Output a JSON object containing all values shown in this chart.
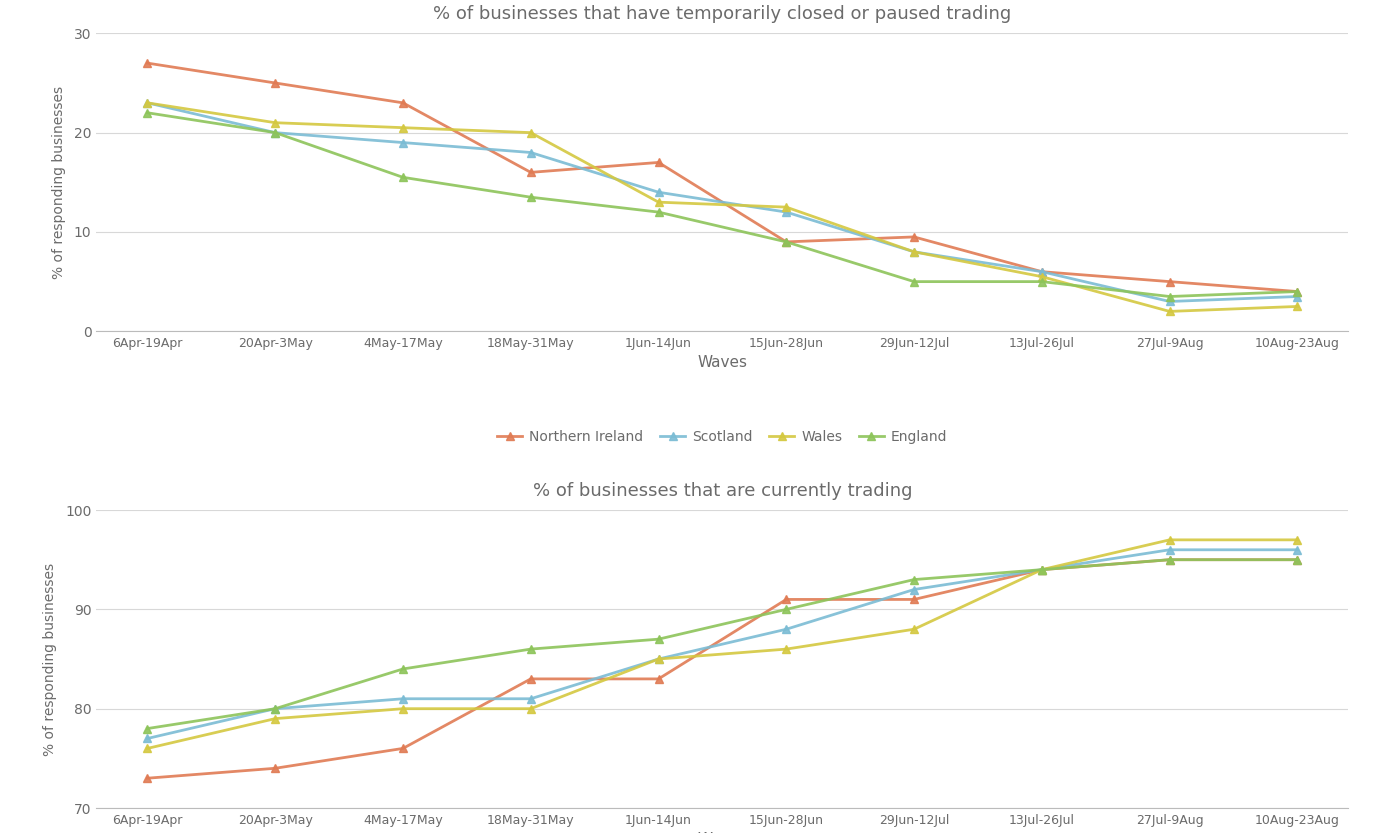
{
  "waves": [
    "6Apr-19Apr",
    "20Apr-3May",
    "4May-17May",
    "18May-31May",
    "1Jun-14Jun",
    "15Jun-28Jun",
    "29Jun-12Jul",
    "13Jul-26Jul",
    "27Jul-9Aug",
    "10Aug-23Aug"
  ],
  "chart1": {
    "title": "% of businesses that have temporarily closed or paused trading",
    "ylabel": "% of responding businesses",
    "xlabel": "Waves",
    "ylim": [
      0,
      30
    ],
    "yticks": [
      0,
      10,
      20,
      30
    ],
    "series": {
      "Northern Ireland": [
        27,
        25,
        23,
        16,
        17,
        9,
        9.5,
        6,
        5,
        4
      ],
      "Scotland": [
        23,
        20,
        19,
        18,
        14,
        12,
        8,
        6,
        3,
        3.5
      ],
      "Wales": [
        23,
        21,
        20.5,
        20,
        13,
        12.5,
        8,
        5.5,
        2,
        2.5
      ],
      "England": [
        22,
        20,
        15.5,
        13.5,
        12,
        9,
        5,
        5,
        3.5,
        4
      ]
    }
  },
  "chart2": {
    "title": "% of businesses that are currently trading",
    "ylabel": "% of responding businesses",
    "xlabel": "Waves",
    "ylim": [
      70,
      100
    ],
    "yticks": [
      70,
      80,
      90,
      100
    ],
    "series": {
      "Northern Ireland": [
        73,
        74,
        76,
        83,
        83,
        91,
        91,
        94,
        95,
        95
      ],
      "Scotland": [
        77,
        80,
        81,
        81,
        85,
        88,
        92,
        94,
        96,
        96
      ],
      "Wales": [
        76,
        79,
        80,
        80,
        85,
        86,
        88,
        94,
        97,
        97
      ],
      "England": [
        78,
        80,
        84,
        86,
        87,
        90,
        93,
        94,
        95,
        95
      ]
    }
  },
  "colors": {
    "Northern Ireland": "#E07B54",
    "Scotland": "#7BBCD4",
    "Wales": "#D4C840",
    "England": "#8DC45A"
  },
  "background_color": "#FFFFFF",
  "plot_bg_color": "#FFFFFF",
  "grid_color": "#D8D8D8",
  "text_color": "#6B6B6B",
  "series_order": [
    "Northern Ireland",
    "Scotland",
    "Wales",
    "England"
  ]
}
